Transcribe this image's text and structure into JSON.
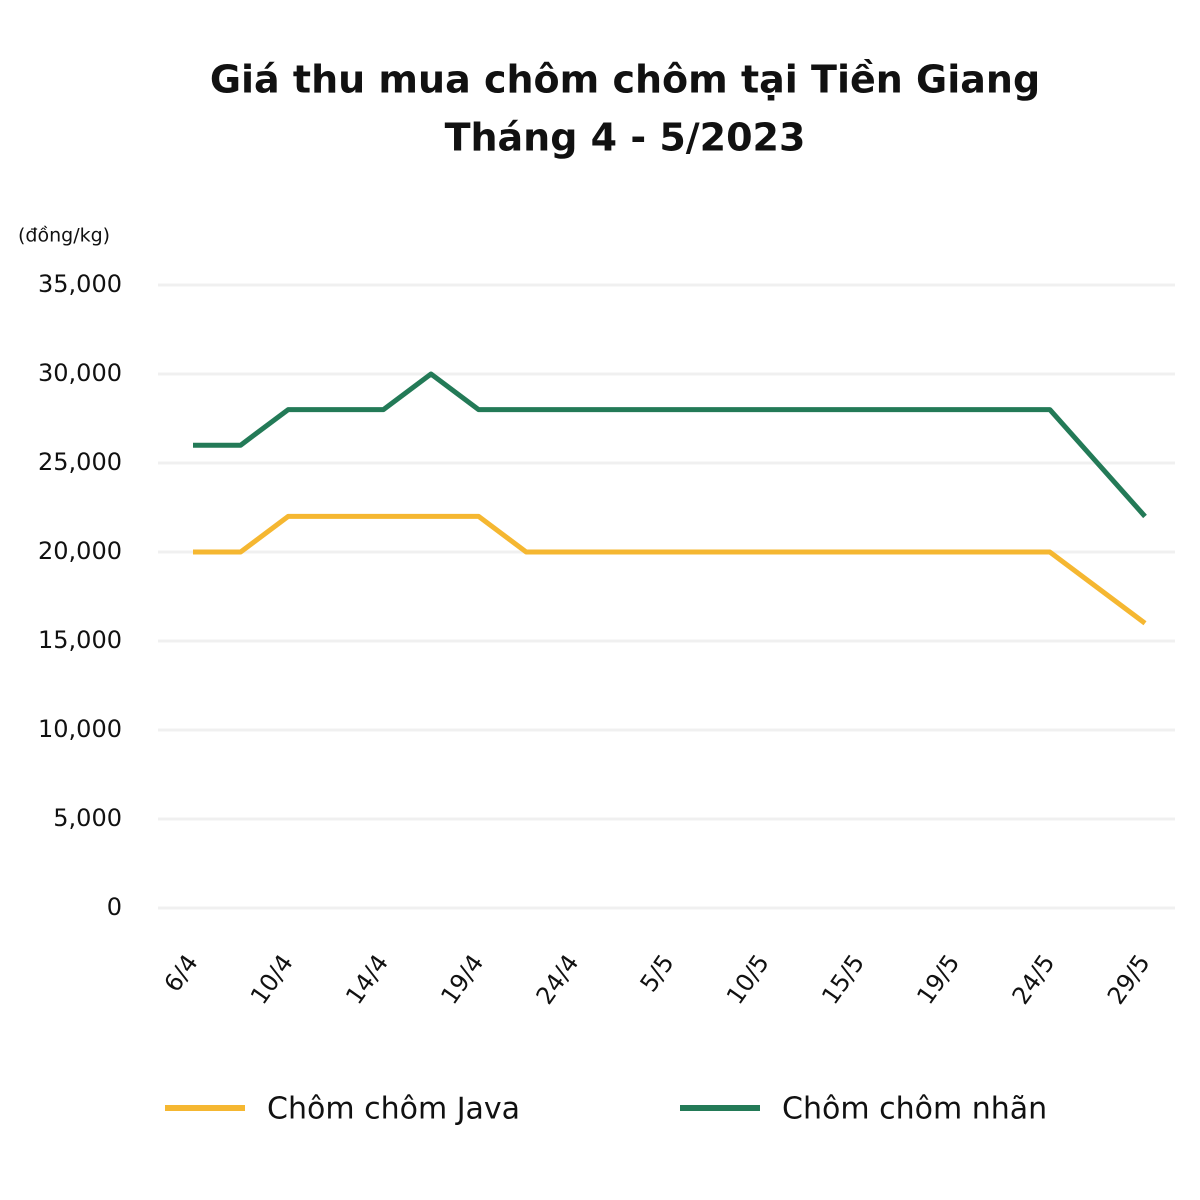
{
  "chart_data": {
    "type": "line",
    "title": "Giá thu mua chôm chôm tại Tiền Giang",
    "subtitle": "Tháng 4 - 5/2023",
    "y_label": "(đồng/kg)",
    "categories": [
      "6/4",
      null,
      "10/4",
      null,
      "14/4",
      null,
      "19/4",
      null,
      "24/4",
      null,
      "5/5",
      null,
      "10/5",
      null,
      "15/5",
      null,
      "19/5",
      null,
      "24/5",
      null,
      "29/5"
    ],
    "series": [
      {
        "name": "Chôm chôm Java",
        "color": "#f5b731",
        "values": [
          20000,
          20000,
          22000,
          22000,
          22000,
          22000,
          22000,
          20000,
          20000,
          20000,
          20000,
          20000,
          20000,
          20000,
          20000,
          20000,
          20000,
          20000,
          20000,
          18000,
          16000
        ]
      },
      {
        "name": "Chôm chôm nhãn",
        "color": "#237a57",
        "values": [
          26000,
          26000,
          28000,
          28000,
          28000,
          30000,
          28000,
          28000,
          28000,
          28000,
          28000,
          28000,
          28000,
          28000,
          28000,
          28000,
          28000,
          28000,
          28000,
          25000,
          22000
        ]
      }
    ],
    "ylim": [
      0,
      35000
    ],
    "yticks": [
      0,
      {
        "value": 5000,
        "label": "5,000"
      },
      {
        "value": 10000,
        "label": "10,000"
      },
      {
        "value": 15000,
        "label": "15,000"
      },
      {
        "value": 20000,
        "label": "20,000"
      },
      {
        "value": 25000,
        "label": "25,000"
      },
      {
        "value": 30000,
        "label": "30,000"
      },
      {
        "value": 35000,
        "label": "35,000"
      }
    ],
    "grid": true
  }
}
